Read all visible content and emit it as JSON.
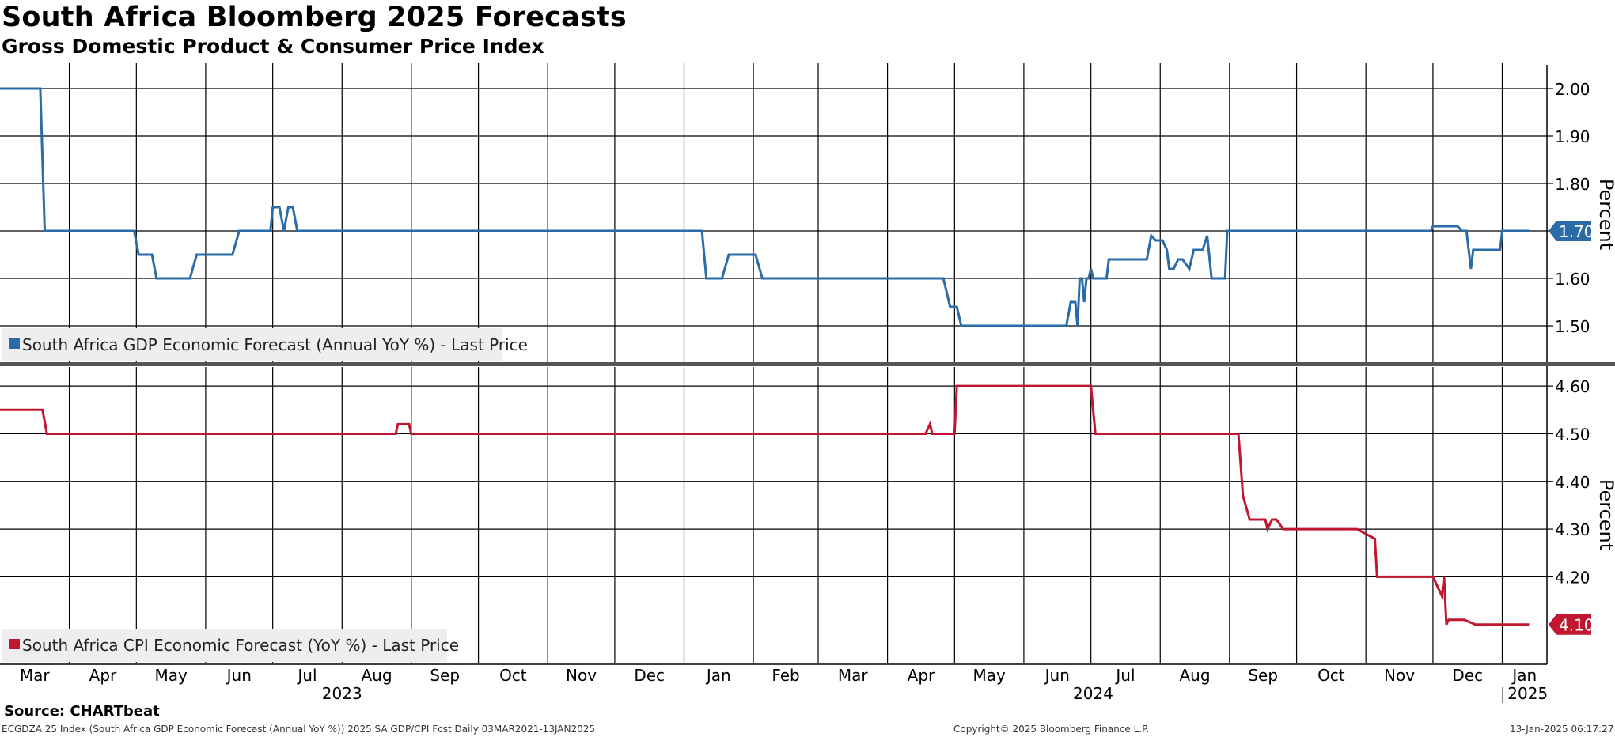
{
  "title": "South Africa Bloomberg 2025 Forecasts",
  "subtitle": "Gross Domestic Product & Consumer Price Index",
  "source": "Source: CHARTbeat",
  "footer": {
    "left": "ECGDZA 25 Index (South Africa GDP Economic Forecast (Annual YoY %)) 2025 SA GDP/CPI Fcst  Daily 03MAR2021-13JAN2025",
    "center": "Copyright© 2025 Bloomberg Finance L.P.",
    "right": "13-Jan-2025 06:17:27"
  },
  "colors": {
    "gdp": "#2a6ba8",
    "cpi": "#c0162f",
    "grid": "#000000",
    "divider": "#555555"
  },
  "chart_data": [
    {
      "type": "line",
      "name": "South Africa GDP Economic Forecast (Annual YoY %) - Last Price",
      "ylabel": "Percent",
      "ylim": [
        1.42,
        2.05
      ],
      "yticks": [
        "2.00",
        "1.90",
        "1.80",
        "1.70",
        "1.60",
        "1.50"
      ],
      "last_value": "1.70",
      "grid": true,
      "legend": "bottom-left",
      "x": [
        "2023-03-01",
        "2023-03-19",
        "2023-03-21",
        "2023-04-30",
        "2023-05-02",
        "2023-05-08",
        "2023-05-10",
        "2023-05-25",
        "2023-05-28",
        "2023-06-13",
        "2023-06-16",
        "2023-06-30",
        "2023-07-01",
        "2023-07-04",
        "2023-07-06",
        "2023-07-08",
        "2023-07-10",
        "2023-07-12",
        "2023-07-13",
        "2024-01-09",
        "2024-01-11",
        "2024-01-18",
        "2024-01-21",
        "2024-02-02",
        "2024-02-05",
        "2024-04-26",
        "2024-04-29",
        "2024-05-02",
        "2024-05-04",
        "2024-06-20",
        "2024-06-22",
        "2024-06-24",
        "2024-06-25",
        "2024-06-26",
        "2024-06-27",
        "2024-06-28",
        "2024-06-29",
        "2024-06-30",
        "2024-07-01",
        "2024-07-02",
        "2024-07-03",
        "2024-07-08",
        "2024-07-09",
        "2024-07-26",
        "2024-07-28",
        "2024-07-30",
        "2024-08-02",
        "2024-08-04",
        "2024-08-05",
        "2024-08-07",
        "2024-08-09",
        "2024-08-11",
        "2024-08-14",
        "2024-08-16",
        "2024-08-20",
        "2024-08-22",
        "2024-08-24",
        "2024-08-27",
        "2024-08-30",
        "2024-08-31",
        "2024-09-01",
        "2024-09-03",
        "2024-09-06",
        "2024-09-07",
        "2024-11-30",
        "2024-12-01",
        "2024-12-12",
        "2024-12-14",
        "2024-12-16",
        "2024-12-18",
        "2024-12-19",
        "2024-12-31",
        "2025-01-01",
        "2025-01-13"
      ],
      "values": [
        2.0,
        2.0,
        1.7,
        1.7,
        1.65,
        1.65,
        1.6,
        1.6,
        1.65,
        1.65,
        1.7,
        1.7,
        1.75,
        1.75,
        1.7,
        1.75,
        1.75,
        1.7,
        1.7,
        1.7,
        1.6,
        1.6,
        1.65,
        1.65,
        1.6,
        1.6,
        1.54,
        1.54,
        1.5,
        1.5,
        1.55,
        1.55,
        1.5,
        1.6,
        1.6,
        1.55,
        1.6,
        1.6,
        1.62,
        1.6,
        1.6,
        1.6,
        1.64,
        1.64,
        1.69,
        1.68,
        1.68,
        1.66,
        1.62,
        1.62,
        1.64,
        1.64,
        1.62,
        1.66,
        1.66,
        1.69,
        1.6,
        1.6,
        1.6,
        1.7,
        1.7,
        1.7,
        1.7,
        1.7,
        1.7,
        1.71,
        1.71,
        1.7,
        1.7,
        1.62,
        1.66,
        1.66,
        1.7,
        1.7
      ]
    },
    {
      "type": "line",
      "name": "South Africa CPI Economic Forecast (YoY %) - Last Price",
      "ylabel": "Percent",
      "ylim": [
        4.02,
        4.64
      ],
      "yticks": [
        "4.60",
        "4.50",
        "4.40",
        "4.30",
        "4.20"
      ],
      "last_value": "4.10",
      "grid": true,
      "legend": "bottom-left",
      "x": [
        "2023-03-01",
        "2023-03-20",
        "2023-03-22",
        "2023-08-25",
        "2023-08-26",
        "2023-08-31",
        "2023-09-01",
        "2024-04-18",
        "2024-04-20",
        "2024-04-21",
        "2024-04-22",
        "2024-05-01",
        "2024-05-02",
        "2024-07-01",
        "2024-07-03",
        "2024-09-05",
        "2024-09-07",
        "2024-09-10",
        "2024-09-17",
        "2024-09-18",
        "2024-09-20",
        "2024-09-22",
        "2024-09-25",
        "2024-10-01",
        "2024-10-03",
        "2024-10-28",
        "2024-11-05",
        "2024-11-06",
        "2024-11-30",
        "2024-12-01",
        "2024-12-05",
        "2024-12-06",
        "2024-12-07",
        "2024-12-08",
        "2024-12-15",
        "2024-12-20",
        "2024-12-22",
        "2025-01-08",
        "2025-01-13"
      ],
      "values": [
        4.55,
        4.55,
        4.5,
        4.5,
        4.52,
        4.52,
        4.5,
        4.5,
        4.52,
        4.5,
        4.5,
        4.5,
        4.6,
        4.6,
        4.5,
        4.5,
        4.37,
        4.32,
        4.32,
        4.3,
        4.32,
        4.32,
        4.3,
        4.3,
        4.3,
        4.3,
        4.28,
        4.2,
        4.2,
        4.2,
        4.16,
        4.2,
        4.1,
        4.11,
        4.11,
        4.1,
        4.1,
        4.1,
        4.1
      ]
    }
  ],
  "months": [
    "Mar",
    "Apr",
    "May",
    "Jun",
    "Jul",
    "Aug",
    "Sep",
    "Oct",
    "Nov",
    "Dec",
    "Jan",
    "Feb",
    "Mar",
    "Apr",
    "May",
    "Jun",
    "Jul",
    "Aug",
    "Sep",
    "Oct",
    "Nov",
    "Dec",
    "Jan"
  ],
  "years": [
    "2023",
    "2024",
    "2025"
  ],
  "xaxis_range": [
    "2023-03-01",
    "2025-01-21"
  ]
}
